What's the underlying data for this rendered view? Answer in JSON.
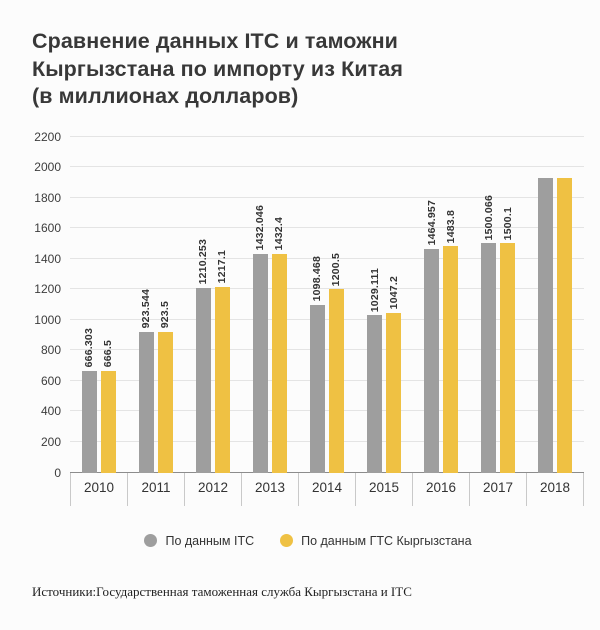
{
  "title_lines": [
    "Сравнение данных ITC и таможни",
    "Кыргызстана по импорту из Китая",
    "(в миллионах долларов)"
  ],
  "source": "Источники:Государственная таможенная служба Кыргызстана и ITC",
  "legend": {
    "items": [
      {
        "key": "itc",
        "label": "По данным ITC",
        "color": "#9e9e9e"
      },
      {
        "key": "gts",
        "label": "По данным ГТС Кыргызстана",
        "color": "#efc143"
      }
    ]
  },
  "chart_data": {
    "type": "bar",
    "title": "Сравнение данных ITC и таможни Кыргызстана по импорту из Китая (в миллионах долларов)",
    "categories": [
      "2010",
      "2011",
      "2012",
      "2013",
      "2014",
      "2015",
      "2016",
      "2017",
      "2018"
    ],
    "series": [
      {
        "key": "itc",
        "name": "По данным ITC",
        "color": "#9e9e9e",
        "values": [
          666.303,
          923.544,
          1210.253,
          1432.046,
          1098.468,
          1029.111,
          1464.957,
          1500.066,
          1930
        ],
        "labels": [
          "666.303",
          "923.544",
          "1210.253",
          "1432.046",
          "1098.468",
          "1029.111",
          "1464.957",
          "1500.066",
          ""
        ]
      },
      {
        "key": "gts",
        "name": "По данным ГТС Кыргызстана",
        "color": "#efc143",
        "values": [
          666.5,
          923.5,
          1217.1,
          1432.4,
          1200.5,
          1047.2,
          1483.8,
          1500.1,
          1930
        ],
        "labels": [
          "666.5",
          "923.5",
          "1217.1",
          "1432.4",
          "1200.5",
          "1047.2",
          "1483.8",
          "1500.1",
          ""
        ]
      }
    ],
    "ylim": [
      0,
      2200
    ],
    "ytick_step": 200,
    "grid": true,
    "legend_position": "bottom"
  }
}
